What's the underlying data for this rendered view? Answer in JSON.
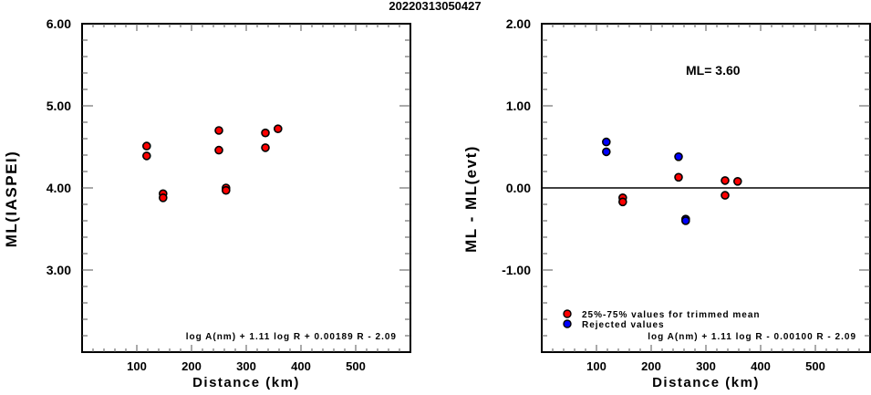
{
  "title": "20220313050427",
  "chart_data": [
    {
      "type": "scatter",
      "xlabel": "Distance (km)",
      "ylabel": "ML(IASPEI)",
      "xlim": [
        0,
        600
      ],
      "ylim": [
        2,
        6
      ],
      "xticks": [
        100,
        200,
        300,
        400,
        500
      ],
      "xtick_labels": [
        "100",
        "200",
        "300",
        "400",
        "500"
      ],
      "yticks": [
        3,
        4,
        5,
        6
      ],
      "ytick_labels": [
        "3.00",
        "4.00",
        "5.00",
        "6.00"
      ],
      "grid": false,
      "formula": "log A(nm) + 1.11 log R + 0.00189 R - 2.09",
      "points": [
        {
          "x": 118,
          "y": 4.51,
          "group": "used"
        },
        {
          "x": 118,
          "y": 4.39,
          "group": "used"
        },
        {
          "x": 148,
          "y": 3.93,
          "group": "used"
        },
        {
          "x": 148,
          "y": 3.88,
          "group": "used"
        },
        {
          "x": 250,
          "y": 4.7,
          "group": "used"
        },
        {
          "x": 250,
          "y": 4.46,
          "group": "used"
        },
        {
          "x": 263,
          "y": 4.0,
          "group": "used"
        },
        {
          "x": 263,
          "y": 3.97,
          "group": "used"
        },
        {
          "x": 335,
          "y": 4.67,
          "group": "used"
        },
        {
          "x": 335,
          "y": 4.49,
          "group": "used"
        },
        {
          "x": 358,
          "y": 4.72,
          "group": "used"
        }
      ]
    },
    {
      "type": "scatter",
      "xlabel": "Distance (km)",
      "ylabel": "ML - ML(evt)",
      "xlim": [
        0,
        600
      ],
      "ylim": [
        -2,
        2
      ],
      "xticks": [
        100,
        200,
        300,
        400,
        500
      ],
      "xtick_labels": [
        "100",
        "200",
        "300",
        "400",
        "500"
      ],
      "yticks": [
        -1,
        0,
        1,
        2
      ],
      "ytick_labels": [
        "-1.00",
        "0.00",
        "1.00",
        "2.00"
      ],
      "grid": false,
      "reference_line": 0,
      "annotation": "ML= 3.60",
      "formula": "log A(nm) + 1.11 log R - 0.00100 R - 2.09",
      "legend": [
        {
          "label": "25%-75% values for trimmed mean",
          "color": "#ff0000"
        },
        {
          "label": "Rejected values",
          "color": "#0000ff"
        }
      ],
      "legend_position": "bottom-left",
      "points": [
        {
          "x": 118,
          "y": 0.56,
          "group": "rejected"
        },
        {
          "x": 118,
          "y": 0.44,
          "group": "rejected"
        },
        {
          "x": 148,
          "y": -0.12,
          "group": "used"
        },
        {
          "x": 148,
          "y": -0.17,
          "group": "used"
        },
        {
          "x": 250,
          "y": 0.38,
          "group": "rejected"
        },
        {
          "x": 250,
          "y": 0.13,
          "group": "used"
        },
        {
          "x": 263,
          "y": -0.38,
          "group": "rejected"
        },
        {
          "x": 263,
          "y": -0.4,
          "group": "rejected"
        },
        {
          "x": 335,
          "y": 0.09,
          "group": "used"
        },
        {
          "x": 335,
          "y": -0.09,
          "group": "used"
        },
        {
          "x": 358,
          "y": 0.08,
          "group": "used"
        }
      ]
    }
  ],
  "colors": {
    "used": "#ff0000",
    "rejected": "#0000ff",
    "outline": "#000000"
  }
}
